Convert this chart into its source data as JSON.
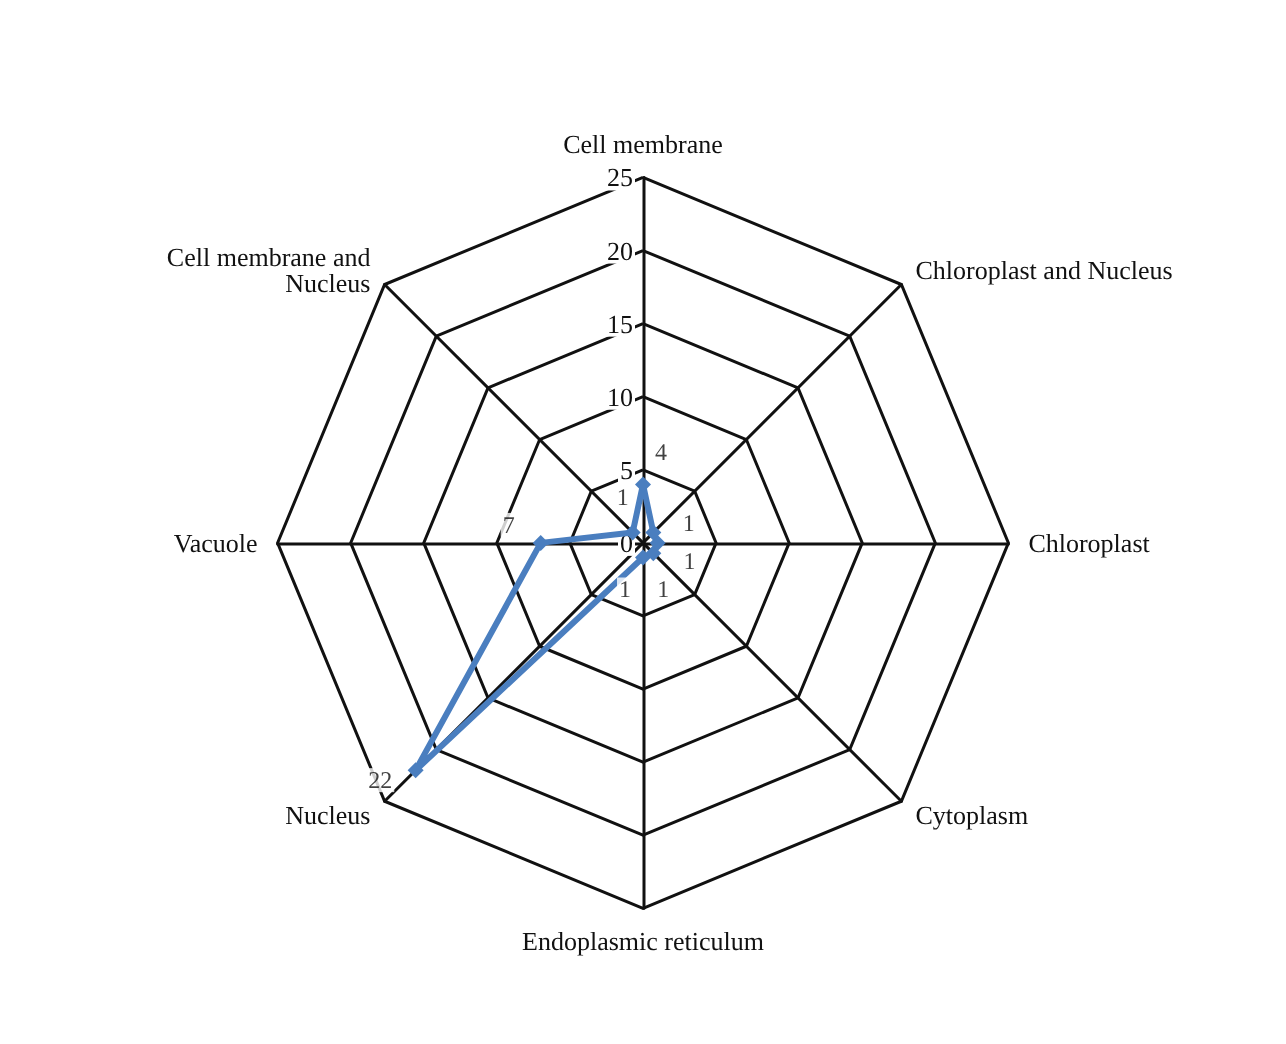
{
  "chart_data": {
    "type": "radar",
    "categories": [
      "Cell membrane",
      "Chloroplast and Nucleus",
      "Chloroplast",
      "Cytoplasm",
      "Endoplasmic reticulum",
      "Nucleus",
      "Vacuole",
      "Cell membrane and\nNucleus"
    ],
    "series": [
      {
        "color": "#4a7ebf",
        "values": [
          4,
          1,
          1,
          1,
          1,
          22,
          7,
          1
        ]
      }
    ],
    "ylim": [
      0,
      25
    ],
    "yticks": [
      0,
      5,
      10,
      15,
      20,
      25
    ],
    "data_labels": true,
    "marker": "diamond",
    "grid": true
  }
}
